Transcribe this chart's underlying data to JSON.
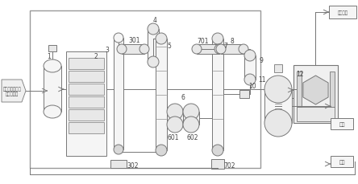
{
  "bg_color": "#ffffff",
  "line_color": "#777777",
  "fill_light": "#f5f5f5",
  "fill_mid": "#e8e8e8",
  "fill_dark": "#d8d8d8",
  "labels": {
    "input_box": "山梨醇、待定溶\n剂、催化剂",
    "right_top": "结晶原料",
    "right_mid": "产品",
    "right_bot": "废液",
    "n1": "1",
    "n2": "2",
    "n3": "3",
    "n4": "4",
    "n5": "5",
    "n6": "6",
    "n7": "7",
    "n8": "8",
    "n9": "9",
    "n10": "10",
    "n11": "11",
    "n12": "12",
    "n301": "301",
    "n302": "302",
    "n601": "601",
    "n602": "602",
    "n701": "701",
    "n702": "702"
  }
}
